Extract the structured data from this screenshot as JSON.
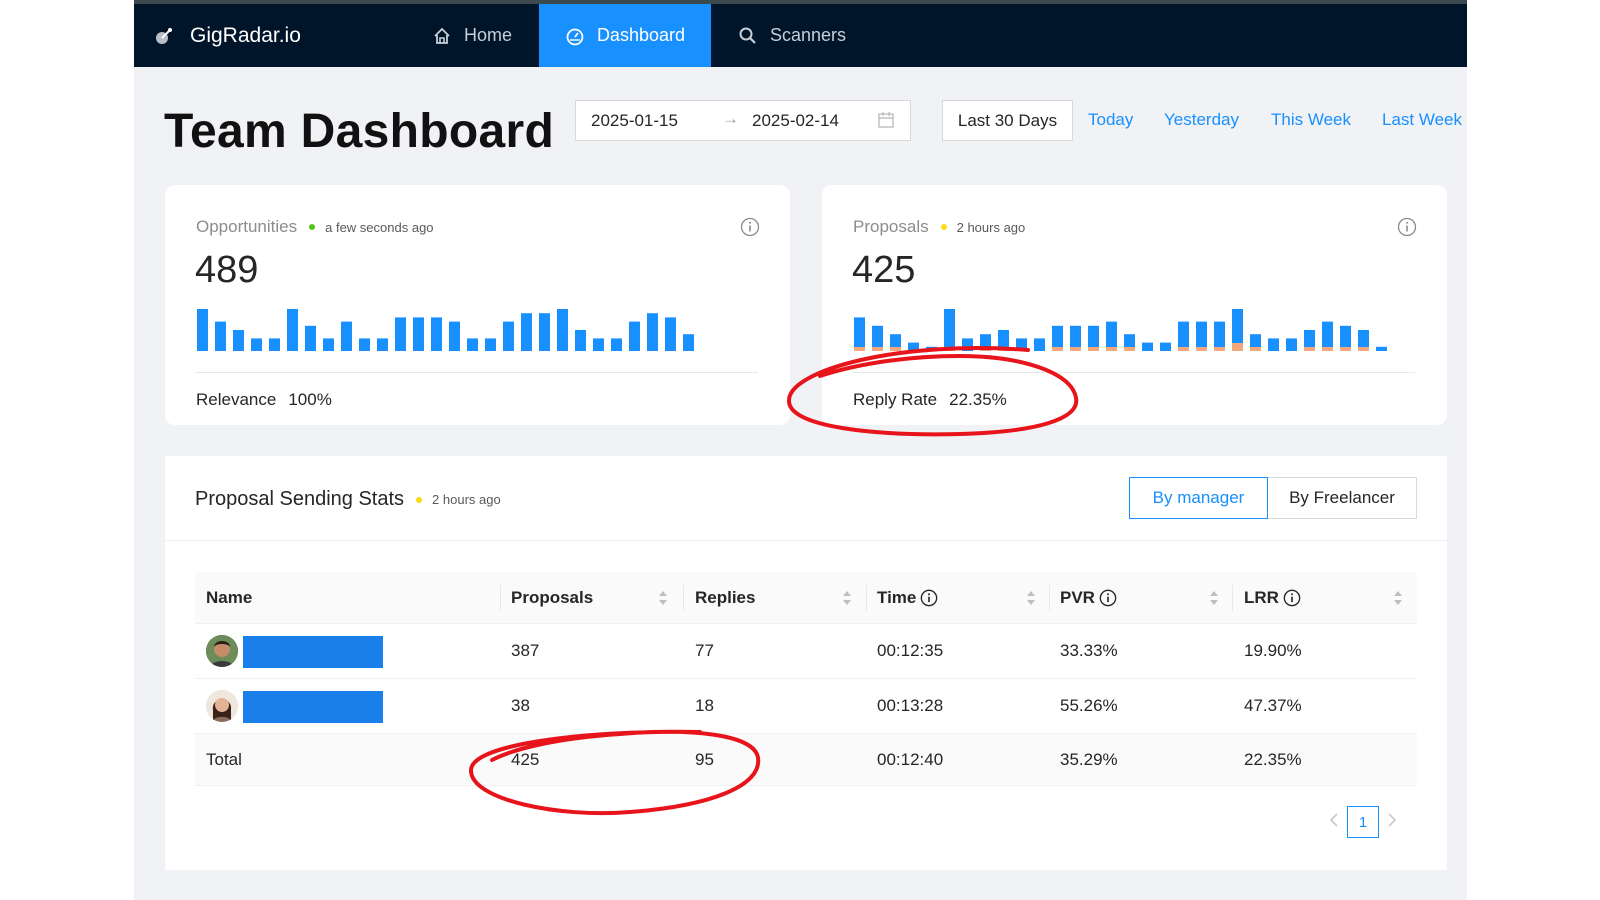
{
  "nav": {
    "brand": "GigRadar.io",
    "items": [
      {
        "label": "Home",
        "icon": "home-icon"
      },
      {
        "label": "Dashboard",
        "icon": "dashboard-icon",
        "active": true
      },
      {
        "label": "Scanners",
        "icon": "search-icon"
      }
    ]
  },
  "page": {
    "title": "Team Dashboard"
  },
  "date_range": {
    "start": "2025-01-15",
    "arrow": "→",
    "end": "2025-02-14"
  },
  "presets": {
    "selected": "Last 30 Days",
    "links": [
      "Today",
      "Yesterday",
      "This Week",
      "Last Week"
    ]
  },
  "opportunities": {
    "label": "Opportunities",
    "updated": "a few seconds ago",
    "value": "489",
    "footer_label": "Relevance",
    "footer_value": "100%",
    "bars": [
      10,
      7,
      5,
      3,
      3,
      10,
      6,
      3,
      7,
      3,
      3,
      8,
      8,
      8,
      7,
      3,
      3,
      7,
      9,
      9,
      10,
      5,
      3,
      3,
      7,
      9,
      8,
      4
    ]
  },
  "proposals": {
    "label": "Proposals",
    "updated": "2 hours ago",
    "value": "425",
    "footer_label": "Reply Rate",
    "footer_value": "22.35%",
    "bars": [
      8,
      6,
      4,
      2,
      1,
      10,
      3,
      4,
      5,
      3,
      3,
      6,
      6,
      6,
      7,
      4,
      2,
      2,
      7,
      7,
      7,
      10,
      4,
      3,
      3,
      5,
      7,
      6,
      5,
      1
    ],
    "replies": [
      1,
      1,
      1,
      0,
      0,
      1,
      0,
      1,
      1,
      0,
      0,
      1,
      1,
      1,
      1,
      1,
      0,
      0,
      1,
      1,
      1,
      2,
      1,
      0,
      0,
      1,
      1,
      1,
      1,
      0
    ]
  },
  "stats": {
    "title": "Proposal Sending Stats",
    "updated": "2 hours ago",
    "toggle": [
      "By manager",
      "By Freelancer"
    ],
    "columns": [
      "Name",
      "Proposals",
      "Replies",
      "Time",
      "PVR",
      "LRR"
    ],
    "rows": [
      {
        "proposals": "387",
        "replies": "77",
        "time": "00:12:35",
        "pvr": "33.33%",
        "lrr": "19.90%"
      },
      {
        "proposals": "38",
        "replies": "18",
        "time": "00:13:28",
        "pvr": "55.26%",
        "lrr": "47.37%"
      }
    ],
    "total": {
      "name": "Total",
      "proposals": "425",
      "replies": "95",
      "time": "00:12:40",
      "pvr": "35.29%",
      "lrr": "22.35%"
    }
  },
  "pagination": {
    "current": "1"
  },
  "colors": {
    "nav_bg": "#001529",
    "accent": "#1890ff",
    "bar_blue": "#1890ff",
    "bar_orange": "#f4a77a",
    "annotation_red": "#e8141c"
  }
}
